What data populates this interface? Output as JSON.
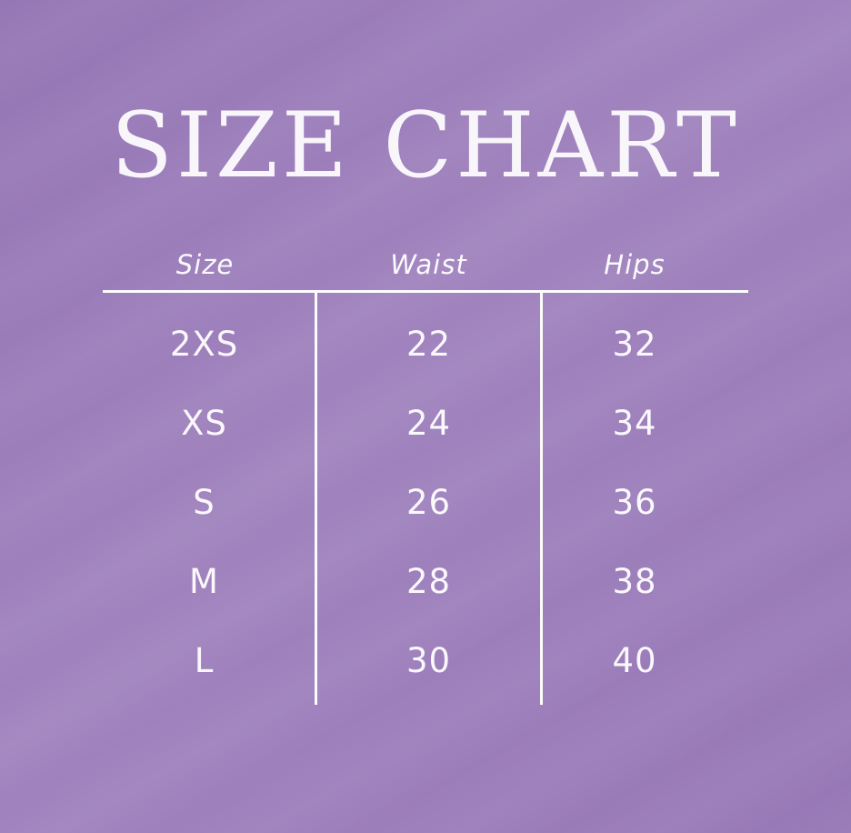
{
  "chart_data": {
    "type": "table",
    "title": "SIZE CHART",
    "columns": [
      "Size",
      "Waist",
      "Hips"
    ],
    "rows": [
      [
        "2XS",
        "22",
        "32"
      ],
      [
        "XS",
        "24",
        "34"
      ],
      [
        "S",
        "26",
        "36"
      ],
      [
        "M",
        "28",
        "38"
      ],
      [
        "L",
        "30",
        "40"
      ]
    ],
    "layout": {
      "legend": "none",
      "grid": "header-rule-with-column-dividers"
    }
  },
  "colors": {
    "background": "#9b7cba",
    "text": "#faf8fc",
    "lines": "#fdfcfe"
  }
}
